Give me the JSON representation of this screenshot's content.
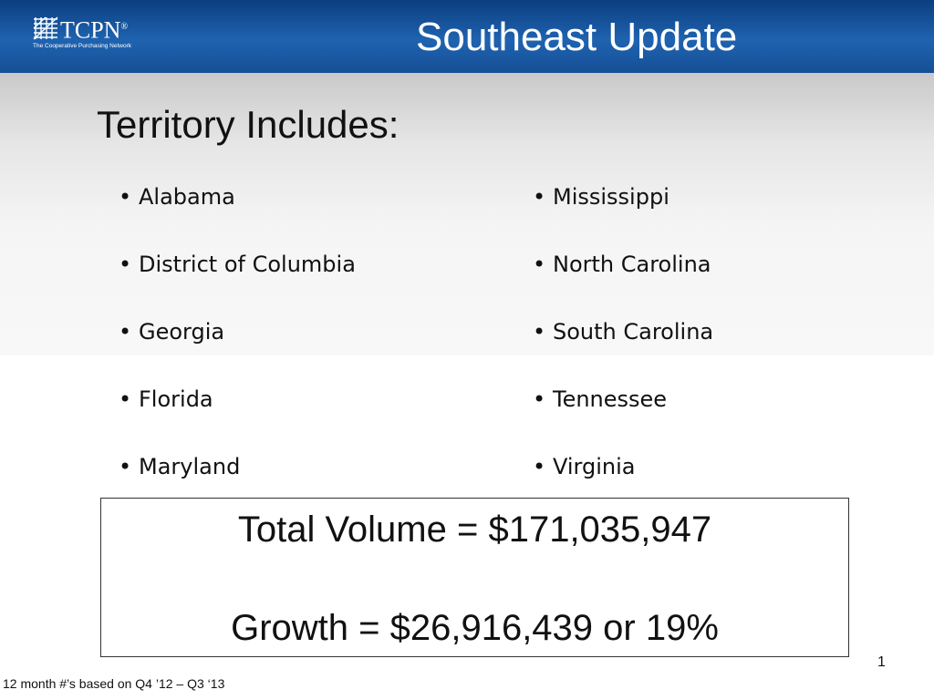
{
  "header": {
    "logo_text": "TCPN",
    "logo_registered": "®",
    "logo_tagline": "The Cooperative Purchasing Network",
    "title": "Southeast Update",
    "color": "#1a5aa6"
  },
  "territory": {
    "heading": "Territory Includes:",
    "bullet": "•",
    "left_column": [
      "Alabama",
      "District of Columbia",
      "Georgia",
      "Florida",
      "Maryland"
    ],
    "right_column": [
      "Mississippi",
      "North Carolina",
      "South Carolina",
      "Tennessee",
      "Virginia"
    ]
  },
  "summary": {
    "total_volume": "Total Volume = $171,035,947",
    "growth": "Growth = $26,916,439 or 19%"
  },
  "footer": {
    "slide_number": "1",
    "footnote": "12 month #’s based on Q4 ’12 – Q3 ‘13"
  }
}
